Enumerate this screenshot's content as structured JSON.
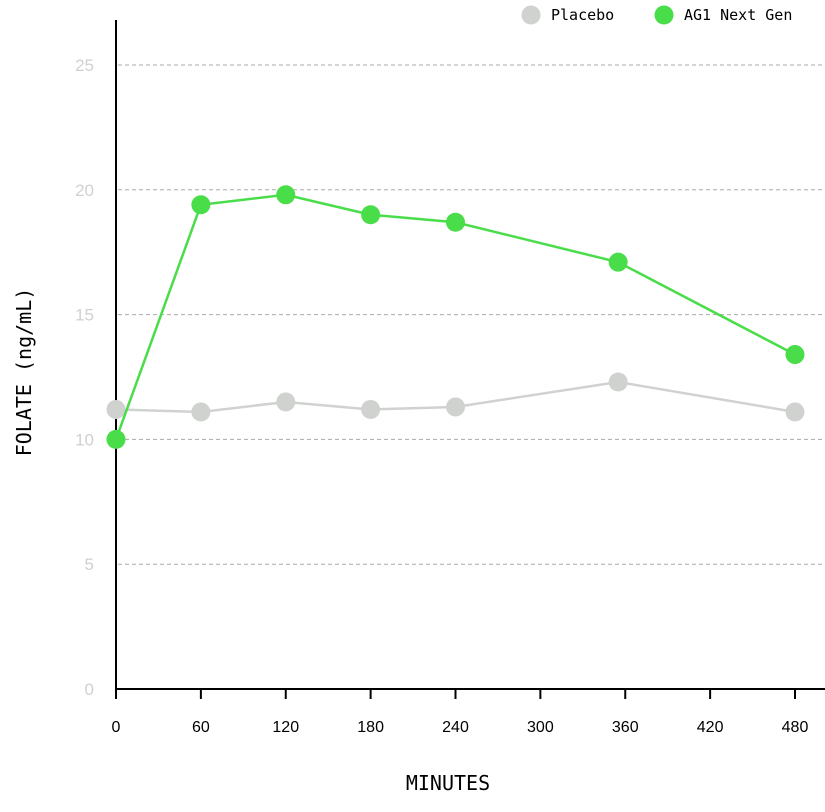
{
  "chart_data": {
    "type": "line",
    "title": "",
    "xlabel": "MINUTES",
    "ylabel": "FOLATE (ng/mL)",
    "xlim": [
      0,
      510
    ],
    "ylim": [
      0,
      27
    ],
    "x_ticks": [
      0,
      60,
      120,
      180,
      240,
      300,
      360,
      420,
      480
    ],
    "y_ticks": [
      0,
      5,
      10,
      15,
      20,
      25
    ],
    "grid": "horizontal dashed",
    "legend": "top-right",
    "series": [
      {
        "name": "Placebo",
        "color": "#d0d2d0",
        "x": [
          0,
          60,
          120,
          180,
          240,
          355,
          480
        ],
        "values": [
          11.2,
          11.1,
          11.5,
          11.2,
          11.3,
          12.3,
          11.1
        ]
      },
      {
        "name": "AG1 Next Gen",
        "color": "#49dd49",
        "x": [
          0,
          60,
          120,
          180,
          240,
          355,
          480
        ],
        "values": [
          10.0,
          19.4,
          19.8,
          19.0,
          18.7,
          17.1,
          13.4
        ]
      }
    ]
  }
}
